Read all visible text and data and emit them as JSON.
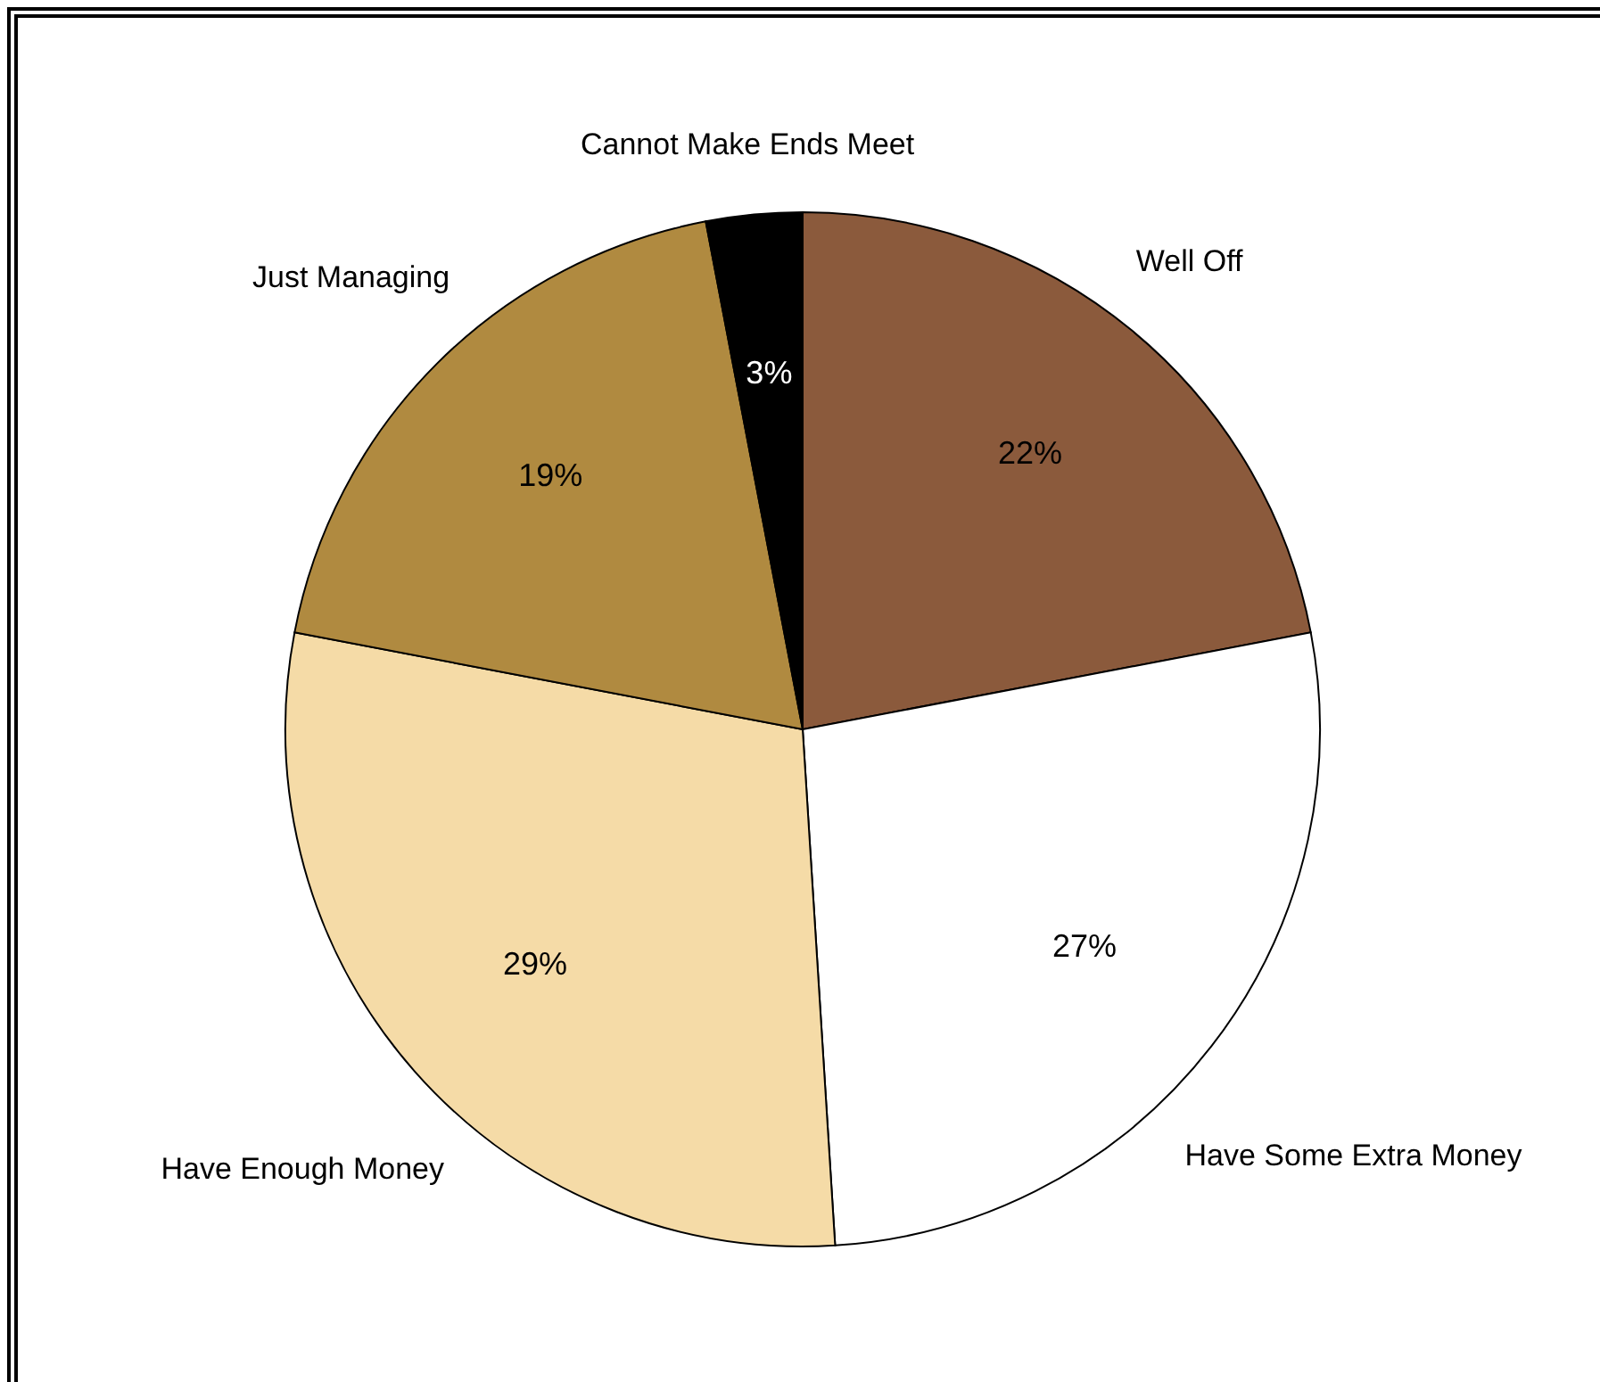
{
  "chart_data": {
    "type": "pie",
    "categories": [
      "Well Off",
      "Have Some Extra Money",
      "Have Enough Money",
      "Just Managing",
      "Cannot Make Ends Meet"
    ],
    "values": [
      22,
      27,
      29,
      19,
      3
    ],
    "colors": [
      "#8b5a3c",
      "#ffffff",
      "#f5dba7",
      "#b08a40",
      "#000000"
    ],
    "value_labels": [
      "22%",
      "27%",
      "29%",
      "19%",
      "3%"
    ],
    "legend": false
  }
}
